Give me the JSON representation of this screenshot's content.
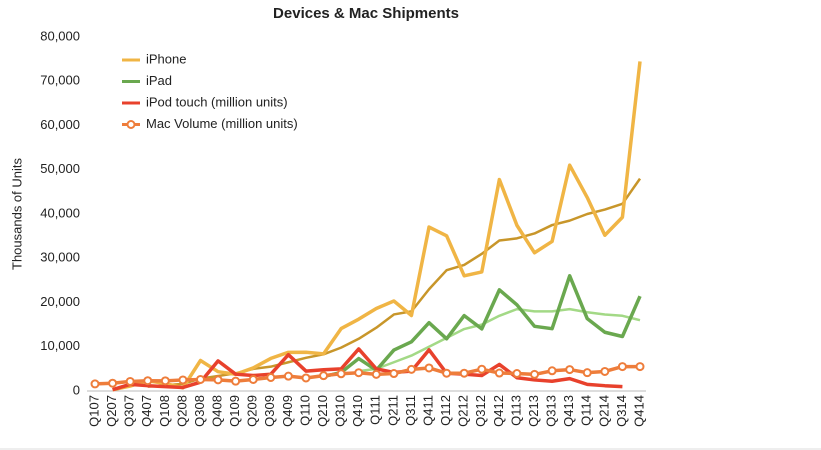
{
  "chart_data": {
    "type": "line",
    "title": "Devices & Mac Shipments",
    "y_label": "Thousands of Units",
    "categories": [
      "Q107",
      "Q207",
      "Q307",
      "Q407",
      "Q108",
      "Q208",
      "Q308",
      "Q408",
      "Q109",
      "Q209",
      "Q309",
      "Q409",
      "Q110",
      "Q210",
      "Q310",
      "Q410",
      "Q111",
      "Q211",
      "Q311",
      "Q411",
      "Q112",
      "Q212",
      "Q312",
      "Q412",
      "Q113",
      "Q213",
      "Q313",
      "Q413",
      "Q114",
      "Q214",
      "Q314",
      "Q414"
    ],
    "ylim": [
      0,
      80000
    ],
    "yticks": [
      0,
      {
        "value": 10000,
        "label": "10,000"
      },
      {
        "value": 20000,
        "label": "20,000"
      },
      {
        "value": 30000,
        "label": "30,000"
      },
      {
        "value": 40000,
        "label": "40,000"
      },
      {
        "value": 50000,
        "label": "50,000"
      },
      {
        "value": 60000,
        "label": "60,000"
      },
      {
        "value": 70000,
        "label": "70,000"
      },
      {
        "value": 80000,
        "label": "80,000"
      }
    ],
    "grid": false,
    "legend": "top-left",
    "series": [
      {
        "color": "#c8962a",
        "values": [
          null,
          null,
          null,
          1000,
          1300,
          1600,
          2800,
          3400,
          4000,
          5000,
          5500,
          6500,
          7500,
          8300,
          9800,
          11800,
          14300,
          17300,
          18000,
          23000,
          27300,
          28500,
          31000,
          34000,
          34500,
          35600,
          37500,
          38500,
          40000,
          41000,
          42300,
          48000
        ]
      },
      {
        "color": "#a3d986",
        "values": [
          null,
          null,
          null,
          null,
          null,
          null,
          null,
          null,
          null,
          null,
          null,
          null,
          null,
          null,
          null,
          4500,
          5000,
          6500,
          8000,
          10000,
          12000,
          14000,
          15000,
          17000,
          18500,
          18000,
          18000,
          18500,
          17800,
          17300,
          17000,
          16000
        ]
      },
      {
        "name": "iPhone",
        "color": "#f0b545",
        "values": [
          null,
          270,
          1119,
          2315,
          1703,
          717,
          6892,
          4363,
          3793,
          5208,
          7367,
          8737,
          8752,
          8398,
          14102,
          16235,
          18647,
          20338,
          17070,
          37044,
          35064,
          26028,
          26910,
          47789,
          37430,
          31241,
          33797,
          51025,
          43719,
          35203,
          39272,
          74468
        ]
      },
      {
        "name": "iPad",
        "color": "#6aa84f",
        "values": [
          null,
          null,
          null,
          null,
          null,
          null,
          null,
          null,
          null,
          null,
          null,
          null,
          null,
          3270,
          4190,
          7331,
          4694,
          9246,
          11123,
          15434,
          11798,
          17042,
          14036,
          22860,
          19477,
          14617,
          14079,
          26035,
          16350,
          13276,
          12316,
          21419
        ]
      },
      {
        "name": "iPod touch (million units)",
        "color": "#e8412c",
        "values": [
          null,
          300,
          1500,
          1200,
          1000,
          800,
          2000,
          6800,
          3800,
          3500,
          3800,
          8200,
          4500,
          4800,
          5000,
          9500,
          5000,
          4200,
          4500,
          9300,
          4000,
          3800,
          3500,
          6000,
          3000,
          2500,
          2200,
          2800,
          1500,
          1200,
          1000,
          null
        ]
      },
      {
        "name": "Mac Volume (million units)",
        "color": "#ee7d3b",
        "markers": true,
        "values": [
          1600,
          1760,
          2160,
          2320,
          2290,
          2500,
          2610,
          2520,
          2220,
          2600,
          3050,
          3360,
          2940,
          3470,
          3890,
          4130,
          3760,
          3950,
          4890,
          5200,
          4020,
          4020,
          4920,
          4060,
          3950,
          3750,
          4570,
          4840,
          4140,
          4410,
          5520,
          5520
        ]
      }
    ]
  }
}
